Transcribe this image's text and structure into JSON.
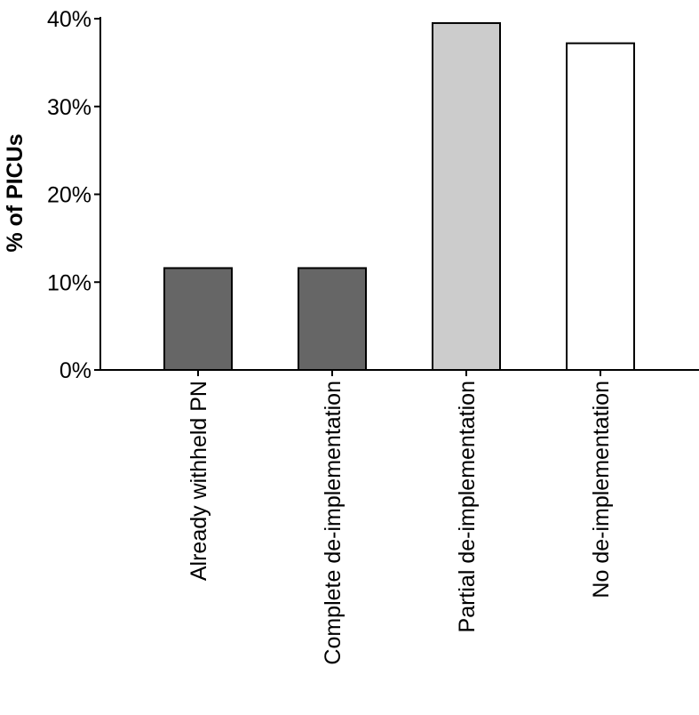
{
  "chart_data": {
    "type": "bar",
    "title": "",
    "xlabel": "",
    "ylabel": "% of PICUs",
    "categories": [
      "Already withheld PN",
      "Complete de-implementation",
      "Partial de-implementation",
      "No de-implementation"
    ],
    "values": [
      11.6,
      11.6,
      39.5,
      37.2
    ],
    "bar_colors": [
      "#666666",
      "#666666",
      "#cccccc",
      "#ffffff"
    ],
    "ylim": [
      0,
      40
    ],
    "yticks": [
      0,
      10,
      20,
      30,
      40
    ],
    "ytick_labels": [
      "0%",
      "10%",
      "20%",
      "30%",
      "40%"
    ],
    "grid": false,
    "legend": "none"
  }
}
